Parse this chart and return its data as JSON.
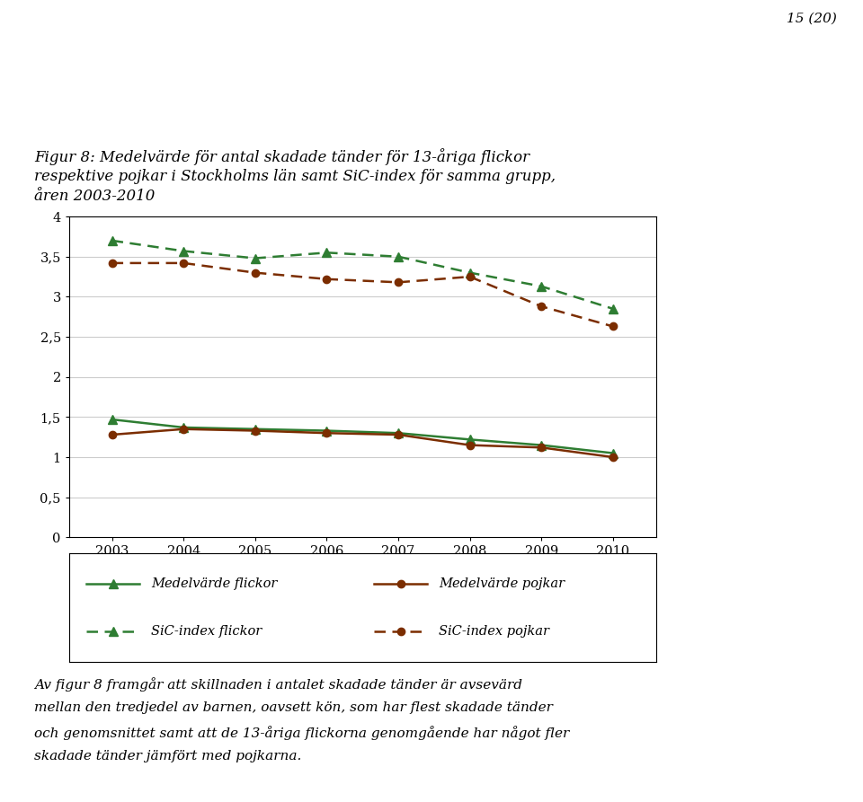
{
  "years": [
    2003,
    2004,
    2005,
    2006,
    2007,
    2008,
    2009,
    2010
  ],
  "medelv_flickor": [
    1.47,
    1.37,
    1.35,
    1.33,
    1.3,
    1.22,
    1.15,
    1.05
  ],
  "medelv_pojkar": [
    1.28,
    1.35,
    1.33,
    1.3,
    1.28,
    1.15,
    1.12,
    1.0
  ],
  "sic_flickor": [
    3.7,
    3.57,
    3.48,
    3.55,
    3.5,
    3.3,
    3.13,
    2.85
  ],
  "sic_pojkar": [
    3.42,
    3.42,
    3.3,
    3.22,
    3.18,
    3.25,
    2.88,
    2.63
  ],
  "color_green": "#2e7d32",
  "color_brown": "#7b2d00",
  "title_line1": "Figur 8: Medelvärde för antal skadade tänder för 13-åriga flickor",
  "title_line2": "respektive pojkar i Stockholms län samt SiC-index för samma grupp,",
  "title_line3": "åren 2003-2010",
  "page_number": "15 (20)",
  "legend_labels": [
    "Medelvärde flickor",
    "Medelvärde pojkar",
    "SiC-index flickor",
    "SiC-index pojkar"
  ],
  "footer_line1": "Av figur 8 framgår att skillnaden i antalet skadade tänder är avsevärd",
  "footer_line2": "mellan den tredjedel av barnen, oavsett kön, som har flest skadade tänder",
  "footer_line3": "och genomsnittet samt att de 13-åriga flickorna genomgående har något fler",
  "footer_line4": "skadade tänder jämfört med pojkarna.",
  "ylim": [
    0,
    4
  ],
  "yticks": [
    0,
    0.5,
    1,
    1.5,
    2,
    2.5,
    3,
    3.5,
    4
  ],
  "ytick_labels": [
    "0",
    "0,5",
    "1",
    "1,5",
    "2",
    "2,5",
    "3",
    "3,5",
    "4"
  ]
}
